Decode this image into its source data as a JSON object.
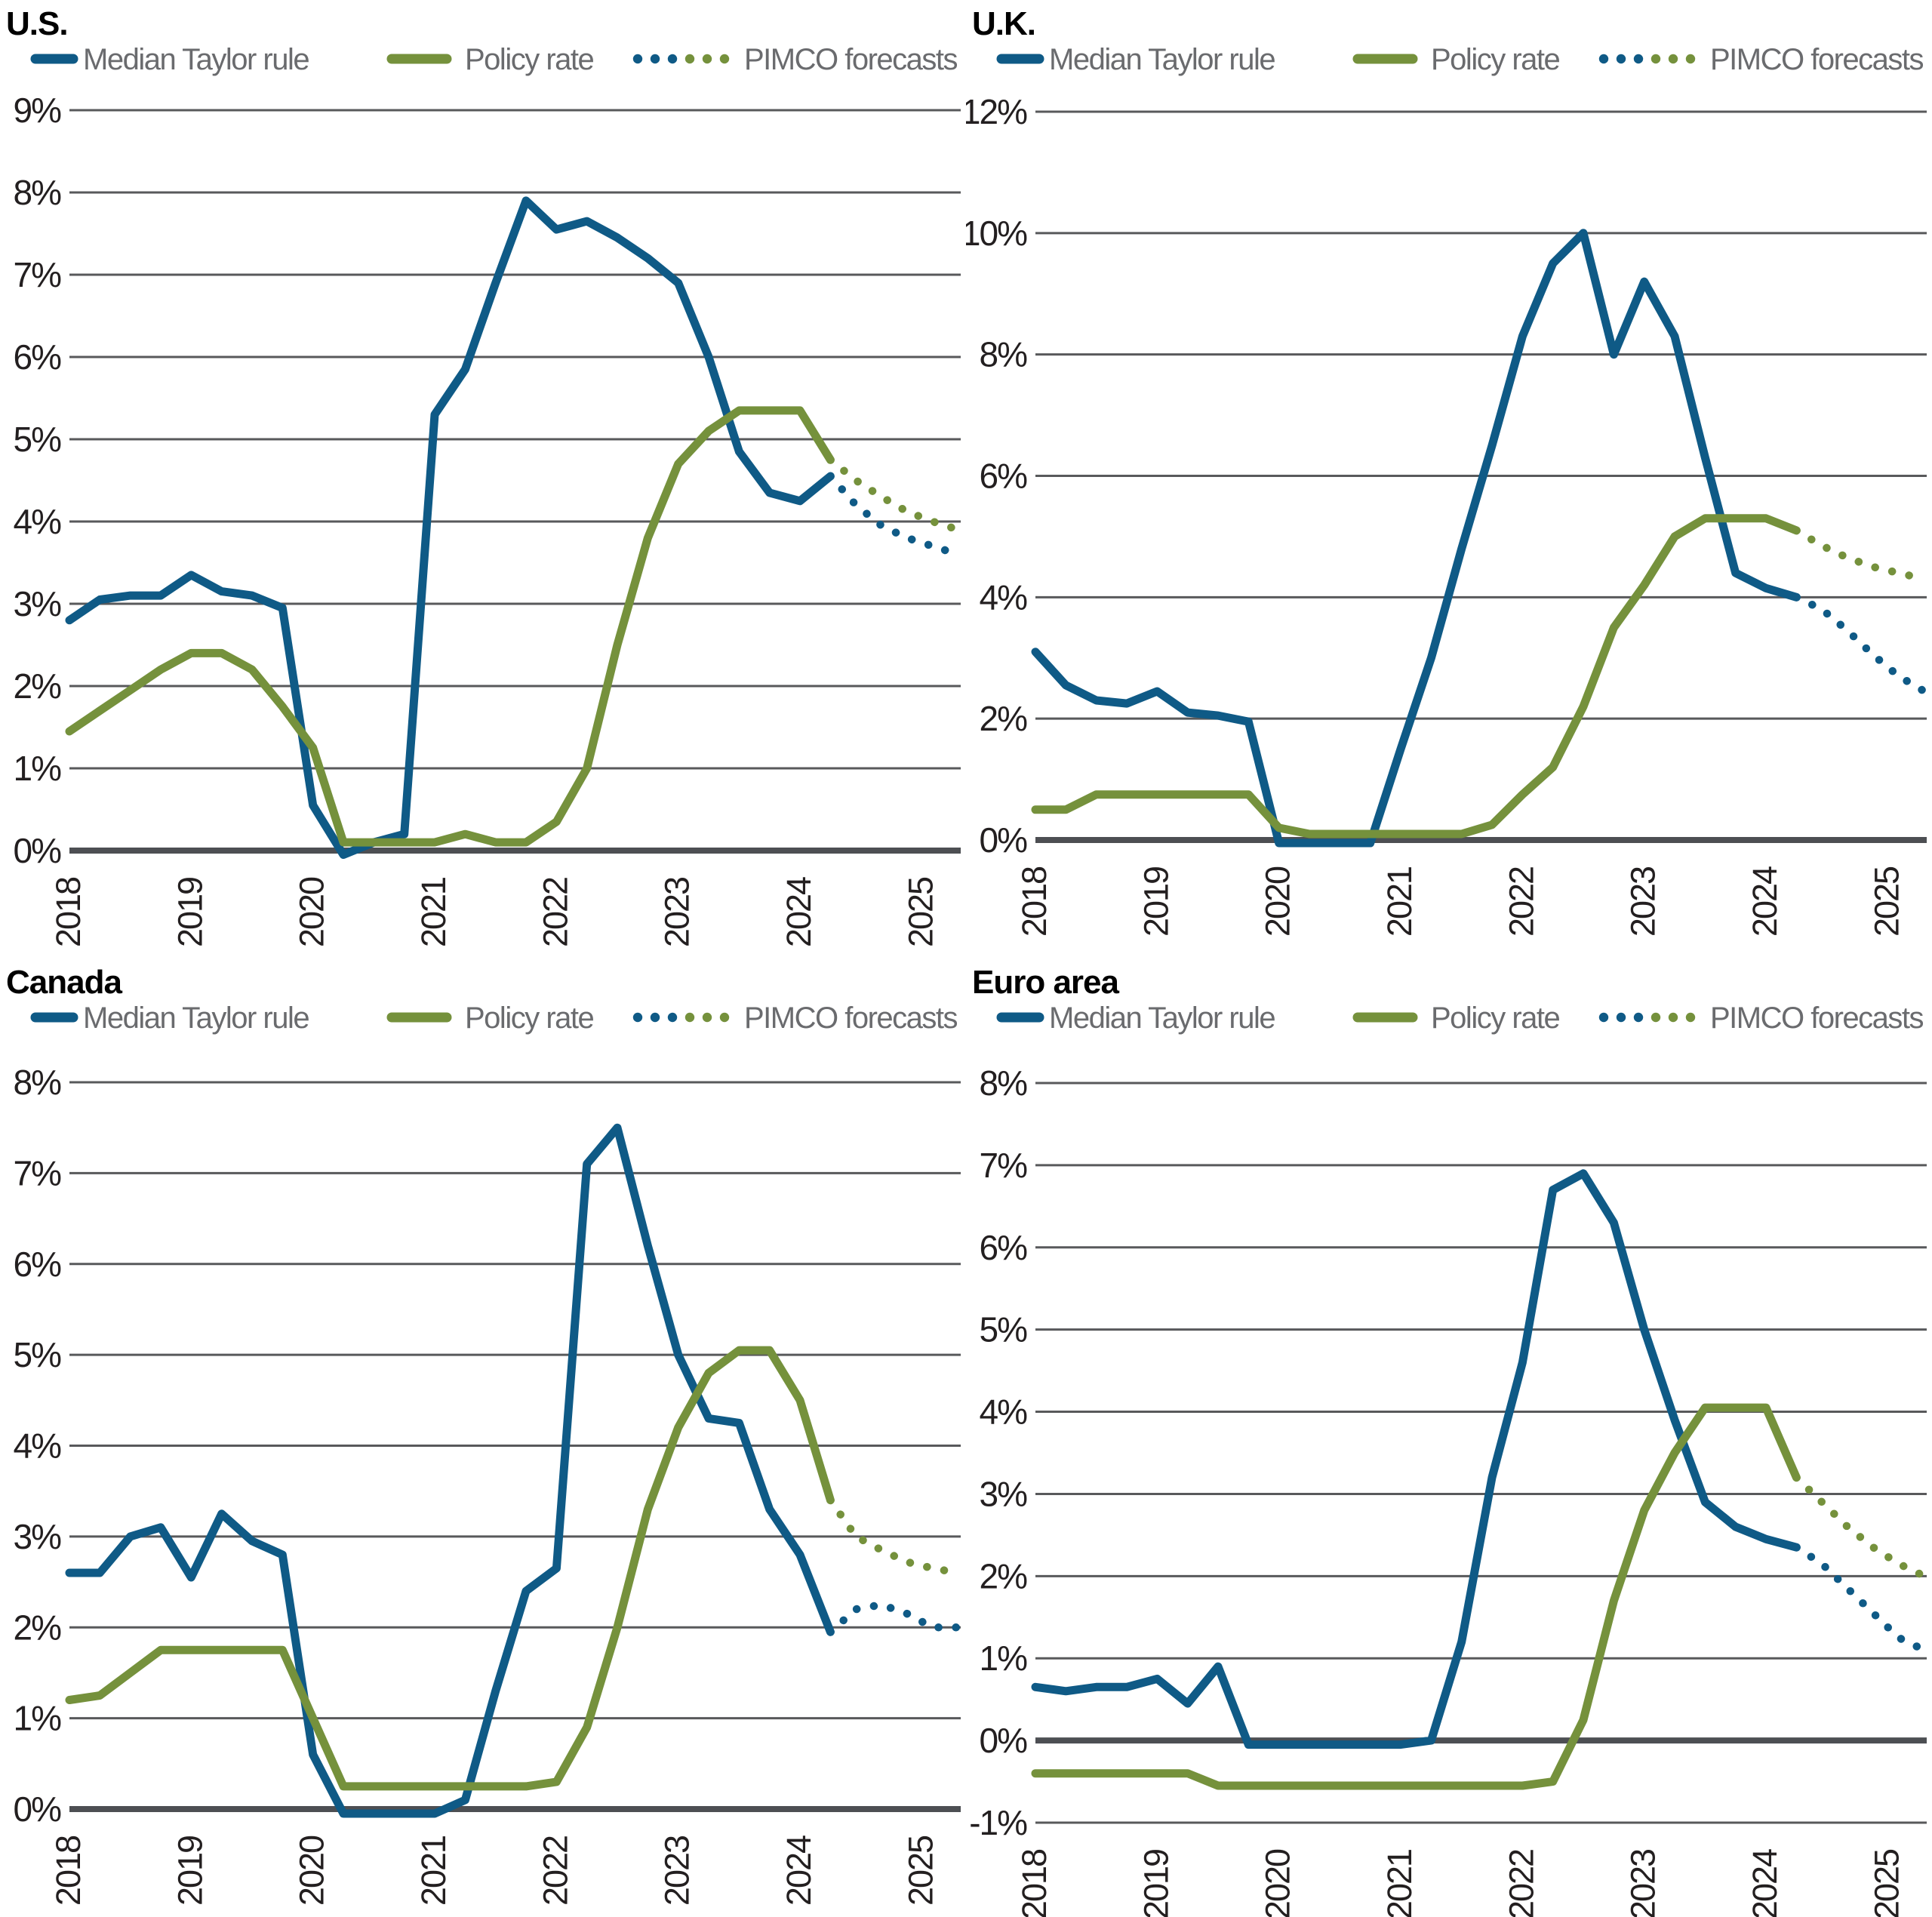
{
  "colors": {
    "taylor_blue": "#0f5a86",
    "policy_green": "#75913c",
    "gridline": "#58595b",
    "zero_line": "#4d4f53",
    "tick_text": "#231f20",
    "legend_text": "#6a6b6e",
    "title_text": "#000000"
  },
  "legend": {
    "taylor_label": "Median Taylor rule",
    "policy_label": "Policy rate",
    "forecast_label": "PIMCO forecasts"
  },
  "chart_data": [
    {
      "id": "us",
      "type": "line",
      "title": "U.S.",
      "x_start": 2018,
      "x_step": 0.25,
      "x_tick_labels": [
        "2018",
        "2019",
        "2020",
        "2021",
        "2022",
        "2023",
        "2024",
        "2025"
      ],
      "ylim": [
        0,
        9
      ],
      "y_ticks": [
        9,
        8,
        7,
        6,
        5,
        4,
        3,
        2,
        1,
        0
      ],
      "y_tick_labels": [
        "9%",
        "8%",
        "7%",
        "6%",
        "5%",
        "4%",
        "3%",
        "2%",
        "1%",
        "0%"
      ],
      "forecast_x": [
        2024.25,
        2024.46,
        2024.67,
        2024.88,
        2025.09,
        2025.3
      ],
      "series": [
        {
          "name": "Median Taylor rule",
          "kind": "actual",
          "color": "taylor_blue",
          "values": [
            2.8,
            3.05,
            3.1,
            3.1,
            3.35,
            3.15,
            3.1,
            2.95,
            0.55,
            -0.05,
            0.1,
            0.2,
            5.3,
            5.85,
            6.9,
            7.9,
            7.55,
            7.65,
            7.45,
            7.2,
            6.9,
            6.0,
            4.85,
            4.35,
            4.25,
            4.55
          ]
        },
        {
          "name": "Policy rate",
          "kind": "actual",
          "color": "policy_green",
          "values": [
            1.45,
            1.7,
            1.95,
            2.2,
            2.4,
            2.4,
            2.2,
            1.75,
            1.25,
            0.1,
            0.1,
            0.1,
            0.1,
            0.2,
            0.1,
            0.1,
            0.35,
            1.0,
            2.5,
            3.8,
            4.7,
            5.1,
            5.35,
            5.35,
            5.35,
            4.75
          ]
        },
        {
          "name": "PIMCO forecasts (Taylor rule)",
          "kind": "forecast",
          "color": "taylor_blue",
          "values": [
            4.55,
            4.2,
            3.95,
            3.8,
            3.7,
            3.6
          ]
        },
        {
          "name": "PIMCO forecasts (Policy rate)",
          "kind": "forecast",
          "color": "policy_green",
          "values": [
            4.75,
            4.5,
            4.3,
            4.12,
            4.0,
            3.9
          ]
        }
      ]
    },
    {
      "id": "uk",
      "type": "line",
      "title": "U.K.",
      "x_start": 2018,
      "x_step": 0.25,
      "x_tick_labels": [
        "2018",
        "2019",
        "2020",
        "2021",
        "2022",
        "2023",
        "2024",
        "2025"
      ],
      "ylim": [
        0,
        12
      ],
      "y_ticks": [
        12,
        10,
        8,
        6,
        4,
        2,
        0
      ],
      "y_tick_labels": [
        "12%",
        "10%",
        "8%",
        "6%",
        "4%",
        "2%",
        "0%"
      ],
      "forecast_x": [
        2024.25,
        2024.46,
        2024.67,
        2024.88,
        2025.09,
        2025.3
      ],
      "series": [
        {
          "name": "Median Taylor rule",
          "kind": "actual",
          "color": "taylor_blue",
          "values": [
            3.1,
            2.55,
            2.3,
            2.25,
            2.45,
            2.1,
            2.05,
            1.95,
            -0.05,
            -0.05,
            -0.05,
            -0.05,
            1.5,
            3.0,
            4.8,
            6.5,
            8.3,
            9.5,
            10.0,
            8.0,
            9.2,
            8.3,
            6.3,
            4.4,
            4.15,
            4.0
          ]
        },
        {
          "name": "Policy rate",
          "kind": "actual",
          "color": "policy_green",
          "values": [
            0.5,
            0.5,
            0.75,
            0.75,
            0.75,
            0.75,
            0.75,
            0.75,
            0.2,
            0.1,
            0.1,
            0.1,
            0.1,
            0.1,
            0.1,
            0.25,
            0.75,
            1.2,
            2.2,
            3.5,
            4.2,
            5.0,
            5.3,
            5.3,
            5.3,
            5.1
          ]
        },
        {
          "name": "PIMCO forecasts (Taylor rule)",
          "kind": "forecast",
          "color": "taylor_blue",
          "values": [
            4.0,
            3.8,
            3.45,
            3.05,
            2.7,
            2.45
          ]
        },
        {
          "name": "PIMCO forecasts (Policy rate)",
          "kind": "forecast",
          "color": "policy_green",
          "values": [
            5.1,
            4.85,
            4.65,
            4.5,
            4.4,
            4.3
          ]
        }
      ]
    },
    {
      "id": "canada",
      "type": "line",
      "title": "Canada",
      "x_start": 2018,
      "x_step": 0.25,
      "x_tick_labels": [
        "2018",
        "2019",
        "2020",
        "2021",
        "2022",
        "2023",
        "2024",
        "2025"
      ],
      "ylim": [
        0,
        8
      ],
      "y_ticks": [
        8,
        7,
        6,
        5,
        4,
        3,
        2,
        1,
        0
      ],
      "y_tick_labels": [
        "8%",
        "7%",
        "6%",
        "5%",
        "4%",
        "3%",
        "2%",
        "1%",
        "0%"
      ],
      "forecast_x": [
        2024.25,
        2024.46,
        2024.67,
        2024.88,
        2025.09,
        2025.3
      ],
      "series": [
        {
          "name": "Median Taylor rule",
          "kind": "actual",
          "color": "taylor_blue",
          "values": [
            2.6,
            2.6,
            3.0,
            3.1,
            2.55,
            3.25,
            2.95,
            2.8,
            0.6,
            -0.05,
            -0.05,
            -0.05,
            -0.05,
            0.1,
            1.3,
            2.4,
            2.65,
            7.1,
            7.5,
            6.2,
            5.0,
            4.3,
            4.25,
            3.3,
            2.8,
            1.95
          ]
        },
        {
          "name": "Policy rate",
          "kind": "actual",
          "color": "policy_green",
          "values": [
            1.2,
            1.25,
            1.5,
            1.75,
            1.75,
            1.75,
            1.75,
            1.75,
            1.0,
            0.25,
            0.25,
            0.25,
            0.25,
            0.25,
            0.25,
            0.25,
            0.3,
            0.9,
            2.0,
            3.3,
            4.2,
            4.8,
            5.05,
            5.05,
            4.5,
            3.4
          ]
        },
        {
          "name": "PIMCO forecasts (Taylor rule)",
          "kind": "forecast",
          "color": "taylor_blue",
          "values": [
            1.95,
            2.2,
            2.25,
            2.15,
            2.0,
            2.0
          ]
        },
        {
          "name": "PIMCO forecasts (Policy rate)",
          "kind": "forecast",
          "color": "policy_green",
          "values": [
            3.4,
            3.0,
            2.85,
            2.72,
            2.65,
            2.6
          ]
        }
      ]
    },
    {
      "id": "euro",
      "type": "line",
      "title": "Euro area",
      "x_start": 2018,
      "x_step": 0.25,
      "x_tick_labels": [
        "2018",
        "2019",
        "2020",
        "2021",
        "2022",
        "2023",
        "2024",
        "2025"
      ],
      "ylim": [
        -1,
        8
      ],
      "y_ticks": [
        8,
        7,
        6,
        5,
        4,
        3,
        2,
        1,
        0,
        -1
      ],
      "y_tick_labels": [
        "8%",
        "7%",
        "6%",
        "5%",
        "4%",
        "3%",
        "2%",
        "1%",
        "0%",
        "-1%"
      ],
      "forecast_x": [
        2024.25,
        2024.46,
        2024.67,
        2024.88,
        2025.09,
        2025.3
      ],
      "series": [
        {
          "name": "Median Taylor rule",
          "kind": "actual",
          "color": "taylor_blue",
          "values": [
            0.65,
            0.6,
            0.65,
            0.65,
            0.75,
            0.45,
            0.9,
            -0.05,
            -0.05,
            -0.05,
            -0.05,
            -0.05,
            -0.05,
            0.0,
            1.2,
            3.2,
            4.6,
            6.7,
            6.9,
            6.3,
            5.0,
            3.9,
            2.9,
            2.6,
            2.45,
            2.35
          ]
        },
        {
          "name": "Policy rate",
          "kind": "actual",
          "color": "policy_green",
          "values": [
            -0.4,
            -0.4,
            -0.4,
            -0.4,
            -0.4,
            -0.4,
            -0.55,
            -0.55,
            -0.55,
            -0.55,
            -0.55,
            -0.55,
            -0.55,
            -0.55,
            -0.55,
            -0.55,
            -0.55,
            -0.5,
            0.25,
            1.7,
            2.8,
            3.5,
            4.05,
            4.05,
            4.05,
            3.2
          ]
        },
        {
          "name": "PIMCO forecasts (Taylor rule)",
          "kind": "forecast",
          "color": "taylor_blue",
          "values": [
            2.35,
            2.15,
            1.85,
            1.55,
            1.25,
            1.1
          ]
        },
        {
          "name": "PIMCO forecasts (Policy rate)",
          "kind": "forecast",
          "color": "policy_green",
          "values": [
            3.2,
            2.9,
            2.6,
            2.35,
            2.15,
            2.0
          ]
        }
      ]
    }
  ]
}
